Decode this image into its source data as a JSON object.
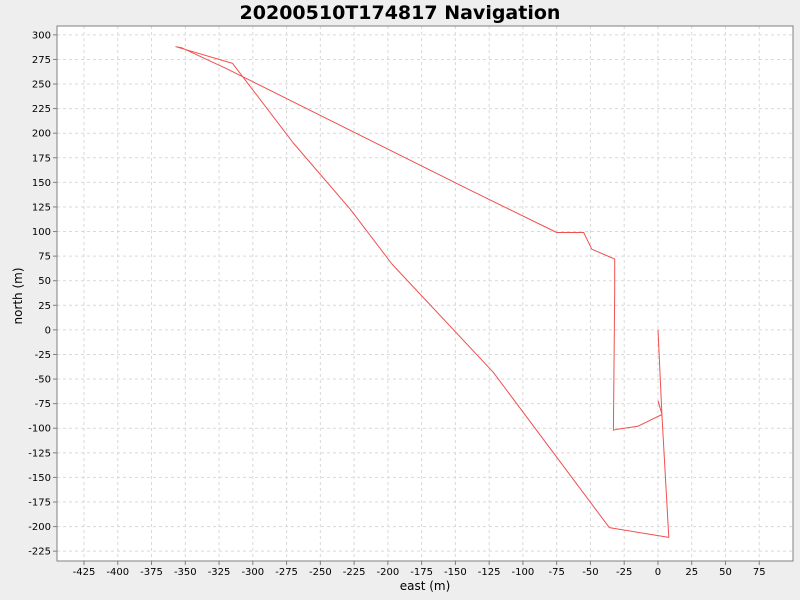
{
  "chart_data": {
    "type": "line",
    "title": "20200510T174817 Navigation",
    "xlabel": "east (m)",
    "ylabel": "north (m)",
    "xlim": [
      -445,
      100
    ],
    "ylim": [
      -235,
      309
    ],
    "grid": true,
    "legend": "none",
    "x_ticks": [
      -425,
      -400,
      -375,
      -350,
      -325,
      -300,
      -275,
      -250,
      -225,
      -200,
      -175,
      -150,
      -125,
      -100,
      -75,
      -50,
      -25,
      0,
      25,
      50,
      75
    ],
    "y_ticks": [
      -225,
      -200,
      -175,
      -150,
      -125,
      -100,
      -75,
      -50,
      -25,
      0,
      25,
      50,
      75,
      100,
      125,
      150,
      175,
      200,
      225,
      250,
      275,
      300
    ],
    "series": [
      {
        "color": "#f05050",
        "x": [
          0,
          3,
          8,
          -36,
          -122,
          -197,
          -228,
          -270,
          -315,
          -357,
          -353,
          -320,
          -136,
          -75,
          -55,
          -49,
          -32,
          -32,
          -33,
          -30,
          -15,
          3,
          0
        ],
        "y": [
          0,
          -88,
          -211,
          -201,
          -43,
          67,
          123,
          190,
          271,
          288,
          287,
          266,
          140,
          99,
          99,
          82,
          72,
          40,
          -102,
          -101,
          -98,
          -86,
          -72
        ]
      }
    ]
  }
}
